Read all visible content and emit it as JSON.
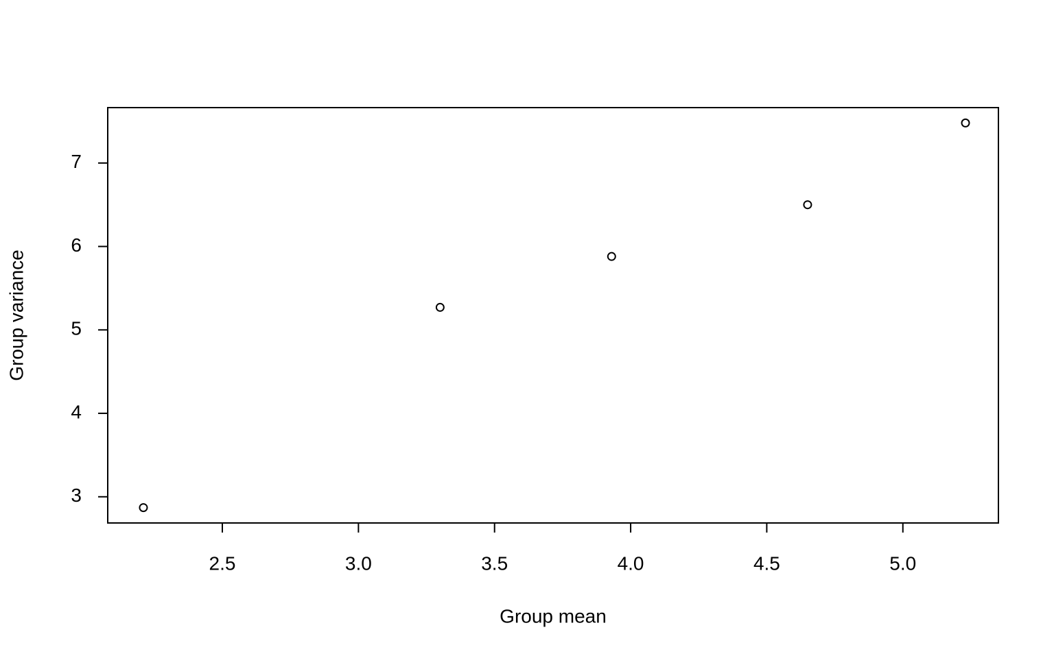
{
  "chart_data": {
    "type": "scatter",
    "x_label": "Group mean",
    "y_label": "Group variance",
    "series": [
      {
        "x": [
          2.21,
          3.3,
          3.93,
          4.65,
          5.23
        ],
        "values": [
          2.87,
          5.27,
          5.88,
          6.5,
          7.48
        ],
        "color": "#000000"
      }
    ],
    "xlim": [
      2.079,
      5.351
    ],
    "ylim": [
      2.686,
      7.664
    ],
    "xticks": [
      2.5,
      {
        "value": 3,
        "label": "3.0"
      },
      3.5,
      {
        "value": 4,
        "label": "4.0"
      },
      4.5,
      {
        "value": 5,
        "label": "5.0"
      }
    ],
    "yticks": [
      3,
      4,
      5,
      6,
      7
    ]
  }
}
